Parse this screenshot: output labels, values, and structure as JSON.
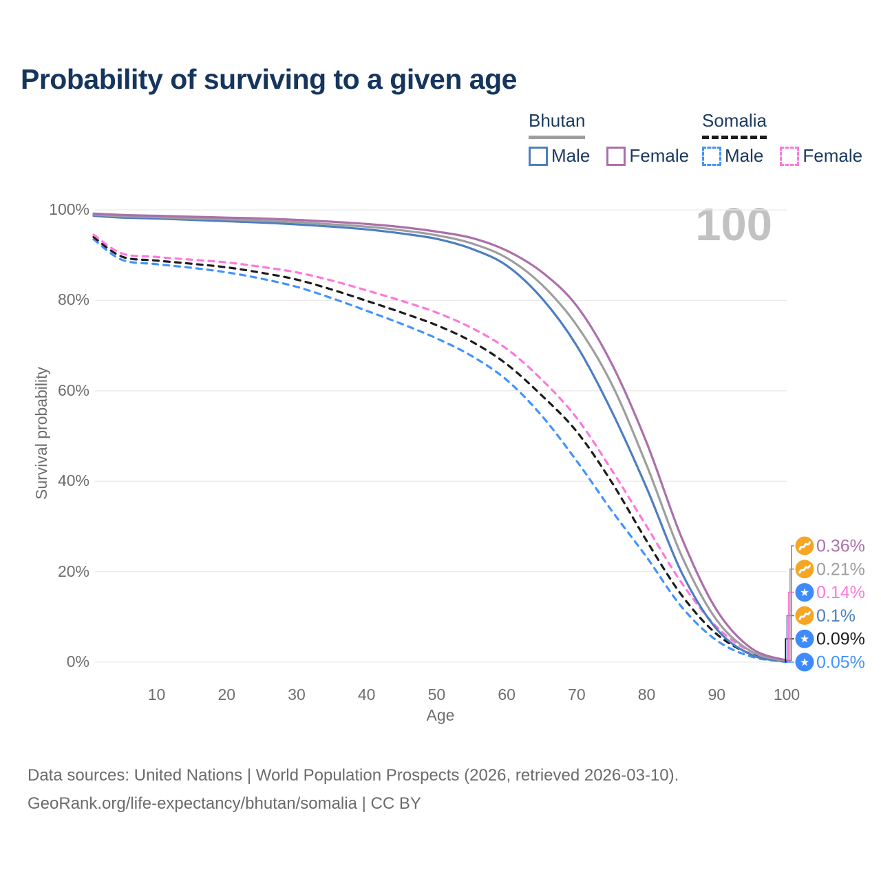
{
  "title": "Probability of surviving to a given age",
  "watermark_age": "100",
  "legend": {
    "groups": [
      {
        "country": "Bhutan",
        "line_style": "solid",
        "underline_color": "#9e9e9e",
        "items": [
          {
            "label": "Male",
            "color": "#4d7ec0"
          },
          {
            "label": "Female",
            "color": "#ac6fab"
          }
        ]
      },
      {
        "country": "Somalia",
        "line_style": "dashed",
        "underline_color": "#1c1c1c",
        "items": [
          {
            "label": "Male",
            "color": "#4293ff"
          },
          {
            "label": "Female",
            "color": "#ff77dd"
          }
        ]
      }
    ]
  },
  "chart_data": {
    "type": "line",
    "title": "Probability of surviving to a given age",
    "xlabel": "Age",
    "ylabel": "Survival probability",
    "xlim": [
      1,
      100
    ],
    "ylim": [
      0,
      100
    ],
    "grid": "horizontal-only",
    "x_ticks": [
      10,
      20,
      30,
      40,
      50,
      60,
      70,
      80,
      90,
      100
    ],
    "y_ticks": [
      {
        "value": 0,
        "label": "0%"
      },
      {
        "value": 20,
        "label": "20%"
      },
      {
        "value": 40,
        "label": "40%"
      },
      {
        "value": 60,
        "label": "60%"
      },
      {
        "value": 80,
        "label": "80%"
      },
      {
        "value": 100,
        "label": "100%"
      }
    ],
    "ages": [
      1,
      5,
      10,
      15,
      20,
      25,
      30,
      35,
      40,
      45,
      50,
      55,
      60,
      65,
      70,
      75,
      80,
      85,
      90,
      95,
      100
    ],
    "series": [
      {
        "name": "Somalia Male",
        "country": "Somalia",
        "sex": "Male",
        "dashed": true,
        "color": "#4293ff",
        "end_label": "0.05%",
        "end_label_color": "#4293ff",
        "flag_icon": "somalia-flag-icon",
        "values": [
          93.5,
          89.0,
          88.0,
          87.2,
          86.2,
          84.8,
          83.0,
          80.5,
          77.7,
          74.8,
          71.6,
          67.7,
          62.4,
          54.5,
          44.5,
          33.5,
          23.2,
          12.2,
          4.8,
          1.2,
          0.05
        ]
      },
      {
        "name": "Somalia",
        "country": "Somalia",
        "sex": "Both",
        "dashed": true,
        "color": "#1c1c1c",
        "end_label": "0.09%",
        "end_label_color": "#1c1c1c",
        "flag_icon": "somalia-flag-icon",
        "values": [
          94.0,
          89.7,
          88.8,
          88.1,
          87.3,
          86.1,
          84.6,
          82.4,
          79.9,
          77.3,
          74.5,
          70.9,
          65.9,
          59.0,
          51.0,
          39.8,
          26.8,
          14.8,
          6.2,
          1.7,
          0.09
        ]
      },
      {
        "name": "Somalia Female",
        "country": "Somalia",
        "sex": "Female",
        "dashed": true,
        "color": "#ff77dd",
        "end_label": "0.14%",
        "end_label_color": "#ff77dd",
        "flag_icon": "somalia-flag-icon",
        "values": [
          94.5,
          90.4,
          89.6,
          89.0,
          88.4,
          87.4,
          86.2,
          84.4,
          82.2,
          79.9,
          77.3,
          73.9,
          69.3,
          62.5,
          54.0,
          42.5,
          30.0,
          17.5,
          7.8,
          2.2,
          0.14
        ]
      },
      {
        "name": "Bhutan Male",
        "country": "Bhutan",
        "sex": "Male",
        "dashed": false,
        "color": "#4d7ec0",
        "end_label": "0.1%",
        "end_label_color": "#4d7ec0",
        "flag_icon": "bhutan-flag-icon",
        "values": [
          98.7,
          98.3,
          98.1,
          97.8,
          97.5,
          97.2,
          96.8,
          96.3,
          95.7,
          94.8,
          93.6,
          91.4,
          87.7,
          80.5,
          70.0,
          55.5,
          38.5,
          19.8,
          7.3,
          1.6,
          0.1
        ]
      },
      {
        "name": "Bhutan",
        "country": "Bhutan",
        "sex": "Both",
        "dashed": false,
        "color": "#9e9e9e",
        "end_label": "0.21%",
        "end_label_color": "#9e9e9e",
        "flag_icon": "bhutan-flag-icon",
        "values": [
          99.0,
          98.6,
          98.4,
          98.1,
          97.9,
          97.6,
          97.3,
          96.8,
          96.3,
          95.5,
          94.4,
          92.6,
          89.4,
          83.5,
          74.5,
          61.5,
          43.5,
          23.5,
          9.3,
          2.3,
          0.21
        ]
      },
      {
        "name": "Bhutan Female",
        "country": "Bhutan",
        "sex": "Female",
        "dashed": false,
        "color": "#ac6fab",
        "end_label": "0.36%",
        "end_label_color": "#ac6fab",
        "flag_icon": "bhutan-flag-icon",
        "values": [
          99.2,
          98.9,
          98.7,
          98.5,
          98.3,
          98.1,
          97.8,
          97.4,
          96.9,
          96.2,
          95.2,
          93.8,
          91.0,
          86.3,
          78.8,
          66.0,
          48.5,
          27.5,
          11.5,
          3.0,
          0.36
        ]
      }
    ],
    "flag_colors": {
      "bhutan_circle": "#f6a623",
      "somalia_circle": "#3d8bfd",
      "glyph": "#ffffff"
    },
    "grid_color": "#eaeaea"
  },
  "footer": {
    "line1": "Data sources: United Nations | World Population Prospects (2026, retrieved 2026-03-10).",
    "line2": "GeoRank.org/life-expectancy/bhutan/somalia | CC BY"
  }
}
